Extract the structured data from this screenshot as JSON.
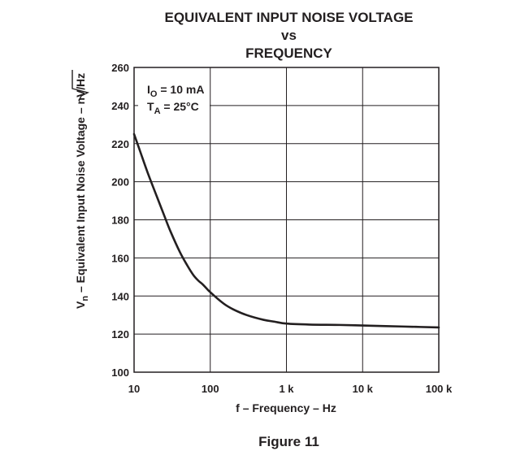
{
  "chart_data": {
    "type": "line",
    "title_lines": [
      "EQUIVALENT INPUT NOISE VOLTAGE",
      "vs",
      "FREQUENCY"
    ],
    "xlabel": "f – Frequency – Hz",
    "ylabel_prefix": "V",
    "ylabel_sub": "n",
    "ylabel_suffix": " – Equivalent Input Noise Voltage – nV/",
    "ylabel_radicand": "Hz",
    "x_scale": "log",
    "xlim": [
      10,
      100000
    ],
    "ylim": [
      100,
      260
    ],
    "x_ticks": [
      10,
      100,
      1000,
      10000,
      100000
    ],
    "x_tick_labels": [
      "10",
      "100",
      "1 k",
      "10 k",
      "100 k"
    ],
    "y_ticks": [
      100,
      120,
      140,
      160,
      180,
      200,
      220,
      240,
      260
    ],
    "y_tick_labels": [
      "100",
      "120",
      "140",
      "160",
      "180",
      "200",
      "220",
      "240",
      "260"
    ],
    "grid": true,
    "annotation": {
      "line1_main": "I",
      "line1_sub": "O",
      "line1_rest": " = 10 mA",
      "line2_main": "T",
      "line2_sub": "A",
      "line2_rest": " = 25°C"
    },
    "series": [
      {
        "x": [
          10,
          12,
          15,
          20,
          25,
          30,
          40,
          50,
          60,
          70,
          80,
          100,
          150,
          200,
          300,
          500,
          700,
          1000,
          2000,
          5000,
          10000,
          20000,
          50000,
          100000
        ],
        "y": [
          225,
          216,
          205,
          192,
          182,
          174,
          163,
          156,
          151,
          148,
          146,
          142,
          136,
          133,
          130,
          127.5,
          126.5,
          125.5,
          125,
          124.8,
          124.5,
          124.2,
          123.8,
          123.5
        ]
      }
    ]
  },
  "figure_label": "Figure 11"
}
